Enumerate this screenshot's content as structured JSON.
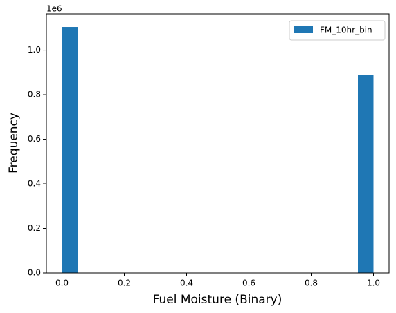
{
  "chart_data": {
    "type": "histogram",
    "x_label": "Fuel Moisture (Binary)",
    "y_label": "Frequency",
    "y_offset_label": "1e6",
    "bins": [
      0,
      0.05,
      0.1,
      0.15,
      0.2,
      0.25,
      0.3,
      0.35,
      0.4,
      0.45,
      0.5,
      0.55,
      0.6,
      0.65,
      0.7,
      0.75,
      0.8,
      0.85,
      0.9,
      0.95,
      1
    ],
    "series": [
      {
        "name": "FM_10hr_bin",
        "color": "#1f77b4",
        "values": [
          1104000,
          0,
          0,
          0,
          0,
          0,
          0,
          0,
          0,
          0,
          0,
          0,
          0,
          0,
          0,
          0,
          0,
          0,
          0,
          890000
        ]
      }
    ],
    "xlim": [
      -0.05,
      1.05
    ],
    "xticks": [
      {
        "value": 0,
        "label": "0.0"
      },
      {
        "value": 0.2,
        "label": "0.2"
      },
      {
        "value": 0.4,
        "label": "0.4"
      },
      {
        "value": 0.6,
        "label": "0.6"
      },
      {
        "value": 0.8,
        "label": "0.8"
      },
      {
        "value": 1,
        "label": "1.0"
      }
    ],
    "ylim": [
      0,
      1163000
    ],
    "yticks": [
      {
        "value": 0,
        "label": "0.0"
      },
      {
        "value": 200000,
        "label": "0.2"
      },
      {
        "value": 400000,
        "label": "0.4"
      },
      {
        "value": 600000,
        "label": "0.6"
      },
      {
        "value": 800000,
        "label": "0.8"
      },
      {
        "value": 1000000,
        "label": "1.0"
      }
    ],
    "grid": false,
    "legend": "upper right"
  }
}
